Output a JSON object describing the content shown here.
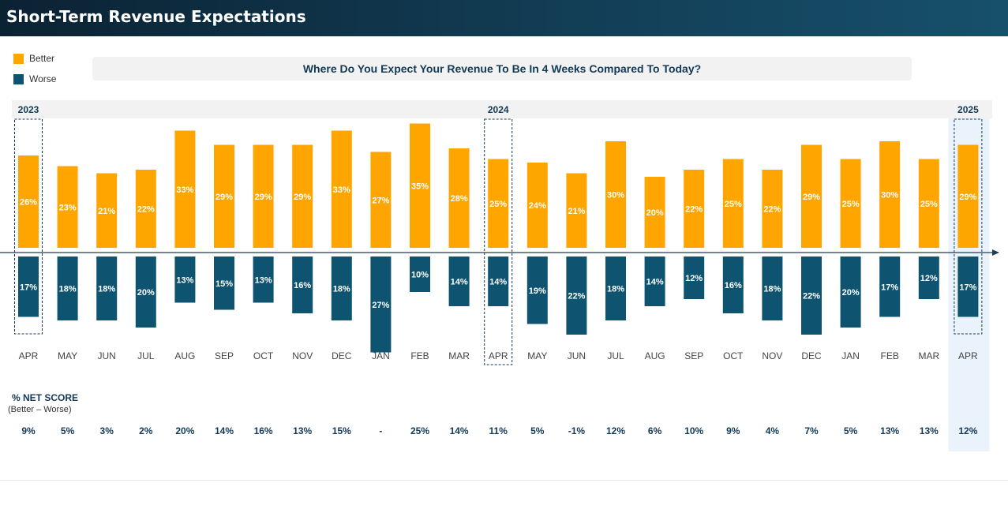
{
  "header": {
    "title": "Short-Term Revenue Expectations"
  },
  "legend": {
    "items": [
      {
        "label": "Better",
        "color": "#ffa500"
      },
      {
        "label": "Worse",
        "color": "#0e5470"
      }
    ]
  },
  "question": "Where Do You Expect Your Revenue To Be In 4 Weeks Compared To Today?",
  "net_score": {
    "title": "% NET SCORE",
    "subtitle": "(Better – Worse)"
  },
  "colors": {
    "better": "#ffa500",
    "worse": "#0e5470",
    "net_text": "#123a57",
    "year_label": "#123a57",
    "highlight_bg": "#eaf3fb",
    "header_bg": "#0b2233"
  },
  "chart_data": {
    "type": "bar",
    "categories": [
      "APR",
      "MAY",
      "JUN",
      "JUL",
      "AUG",
      "SEP",
      "OCT",
      "NOV",
      "DEC",
      "JAN",
      "FEB",
      "MAR",
      "APR",
      "MAY",
      "JUN",
      "JUL",
      "AUG",
      "SEP",
      "OCT",
      "NOV",
      "DEC",
      "JAN",
      "FEB",
      "MAR",
      "APR"
    ],
    "year_labels": [
      {
        "index": 0,
        "label": "2023"
      },
      {
        "index": 12,
        "label": "2024"
      },
      {
        "index": 24,
        "label": "2025"
      }
    ],
    "series": [
      {
        "name": "Better",
        "values": [
          26,
          23,
          21,
          22,
          33,
          29,
          29,
          29,
          33,
          27,
          35,
          28,
          25,
          24,
          21,
          30,
          20,
          22,
          25,
          22,
          29,
          25,
          30,
          25,
          29
        ],
        "labels": [
          "26%",
          "23%",
          "21%",
          "22%",
          "33%",
          "29%",
          "29%",
          "29%",
          "33%",
          "27%",
          "35%",
          "28%",
          "25%",
          "24%",
          "21%",
          "30%",
          "20%",
          "22%",
          "25%",
          "22%",
          "29%",
          "25%",
          "30%",
          "25%",
          "29%"
        ]
      },
      {
        "name": "Worse",
        "values": [
          17,
          18,
          18,
          20,
          13,
          15,
          13,
          16,
          18,
          27,
          10,
          14,
          14,
          19,
          22,
          18,
          14,
          12,
          16,
          18,
          22,
          20,
          17,
          12,
          17
        ],
        "labels": [
          "17%",
          "18%",
          "18%",
          "20%",
          "13%",
          "15%",
          "13%",
          "16%",
          "18%",
          "27%",
          "10%",
          "14%",
          "14%",
          "19%",
          "22%",
          "18%",
          "14%",
          "12%",
          "16%",
          "18%",
          "22%",
          "20%",
          "17%",
          "12%",
          "17%"
        ]
      }
    ],
    "net_scores": [
      "9%",
      "5%",
      "3%",
      "2%",
      "20%",
      "14%",
      "16%",
      "13%",
      "15%",
      "-",
      "25%",
      "14%",
      "11%",
      "5%",
      "-1%",
      "12%",
      "6%",
      "10%",
      "9%",
      "4%",
      "7%",
      "5%",
      "13%",
      "13%",
      "12%"
    ],
    "highlighted_indices": [
      0,
      12,
      24
    ],
    "current_index": 24
  }
}
